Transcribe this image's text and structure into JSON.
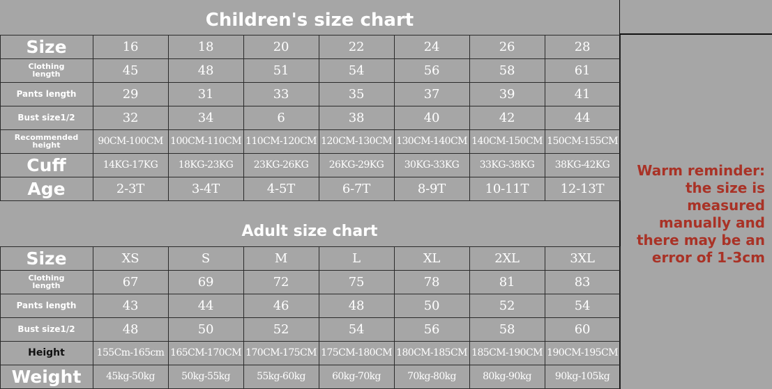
{
  "children": {
    "title": "Children's size chart",
    "rows": [
      {
        "label": "Size",
        "style": "big",
        "values": [
          "16",
          "18",
          "20",
          "22",
          "24",
          "26",
          "28"
        ]
      },
      {
        "label": "Clothing length",
        "style": "tiny",
        "values": [
          "45",
          "48",
          "51",
          "54",
          "56",
          "58",
          "61"
        ]
      },
      {
        "label": "Pants length",
        "style": "small",
        "values": [
          "29",
          "31",
          "33",
          "35",
          "37",
          "39",
          "41"
        ]
      },
      {
        "label": "Bust size1/2",
        "style": "small",
        "values": [
          "32",
          "34",
          "6",
          "38",
          "40",
          "42",
          "44"
        ]
      },
      {
        "label": "Recommended height",
        "style": "tiny",
        "values": [
          "90CM-100CM",
          "100CM-110CM",
          "110CM-120CM",
          "120CM-130CM",
          "130CM-140CM",
          "140CM-150CM",
          "150CM-155CM"
        ]
      },
      {
        "label": "Cuff",
        "style": "big",
        "values": [
          "14KG-17KG",
          "18KG-23KG",
          "23KG-26KG",
          "26KG-29KG",
          "30KG-33KG",
          "33KG-38KG",
          "38KG-42KG"
        ]
      },
      {
        "label": "Age",
        "style": "big",
        "values": [
          "2-3T",
          "3-4T",
          "4-5T",
          "6-7T",
          "8-9T",
          "10-11T",
          "12-13T"
        ]
      }
    ]
  },
  "adult": {
    "title": "Adult size chart",
    "rows": [
      {
        "label": "Size",
        "style": "big",
        "values": [
          "XS",
          "S",
          "M",
          "L",
          "XL",
          "2XL",
          "3XL"
        ]
      },
      {
        "label": "Clothing length",
        "style": "tiny",
        "values": [
          "67",
          "69",
          "72",
          "75",
          "78",
          "81",
          "83"
        ]
      },
      {
        "label": "Pants length",
        "style": "small",
        "values": [
          "43",
          "44",
          "46",
          "48",
          "50",
          "52",
          "54"
        ]
      },
      {
        "label": "Bust size1/2",
        "style": "small",
        "values": [
          "48",
          "50",
          "52",
          "54",
          "56",
          "58",
          "60"
        ]
      },
      {
        "label": "Height",
        "style": "dark",
        "values": [
          "155Cm-165cm",
          "165CM-170CM",
          "170CM-175CM",
          "175CM-180CM",
          "180CM-185CM",
          "185CM-190CM",
          "190CM-195CM"
        ]
      },
      {
        "label": "Weight",
        "style": "big",
        "values": [
          "45kg-50kg",
          "50kg-55kg",
          "55kg-60kg",
          "60kg-70kg",
          "70kg-80kg",
          "80kg-90kg",
          "90kg-105kg"
        ]
      }
    ]
  },
  "reminder": "Warm reminder:\nthe size is\nmeasured\nmanually and\nthere may be an\nerror of 1-3cm",
  "colors": {
    "background": "#a6a6a6",
    "reminder_text": "#a93226",
    "grid": "#2a2a2a"
  }
}
